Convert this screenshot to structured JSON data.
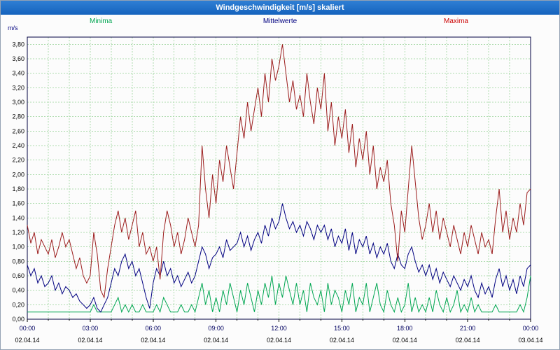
{
  "chart_data": {
    "type": "line",
    "title": "Windgeschwindigkeit [m/s] skaliert",
    "y_unit": "m/s",
    "ylim": [
      0,
      3.9
    ],
    "ytick_step": 0.2,
    "ytick_labels": [
      "0,00",
      "0,20",
      "0,40",
      "0,60",
      "0,80",
      "1,00",
      "1,20",
      "1,40",
      "1,60",
      "1,80",
      "2,00",
      "2,20",
      "2,40",
      "2,60",
      "2,80",
      "3,00",
      "3,20",
      "3,40",
      "3,60",
      "3,80"
    ],
    "x_hours_range": [
      0,
      24
    ],
    "sample_interval_minutes": 10,
    "grid": "dashed-green",
    "legend_position": "top",
    "xtick_labels": [
      "00:00",
      "03:00",
      "06:00",
      "09:00",
      "12:00",
      "15:00",
      "18:00",
      "21:00",
      "00:00"
    ],
    "xtick_dates": [
      "02.04.14",
      "02.04.14",
      "02.04.14",
      "02.04.14",
      "02.04.14",
      "02.04.14",
      "02.04.14",
      "02.04.14",
      "03.04.14"
    ],
    "series": [
      {
        "name": "Minima",
        "color": "#00a651",
        "label_color": "#00a651",
        "values": [
          0.1,
          0.1,
          0.1,
          0.1,
          0.1,
          0.1,
          0.1,
          0.1,
          0.1,
          0.1,
          0.1,
          0.1,
          0.1,
          0.1,
          0.1,
          0.1,
          0.1,
          0.1,
          0.1,
          0.2,
          0.1,
          0.1,
          0.1,
          0.1,
          0.1,
          0.2,
          0.3,
          0.1,
          0.2,
          0.1,
          0.2,
          0.1,
          0.1,
          0.2,
          0.1,
          0.1,
          0.1,
          0.2,
          0.1,
          0.3,
          0.2,
          0.1,
          0.1,
          0.1,
          0.2,
          0.1,
          0.1,
          0.2,
          0.1,
          0.3,
          0.5,
          0.2,
          0.4,
          0.1,
          0.3,
          0.1,
          0.4,
          0.2,
          0.5,
          0.3,
          0.1,
          0.4,
          0.2,
          0.5,
          0.3,
          0.1,
          0.4,
          0.2,
          0.5,
          0.3,
          0.6,
          0.2,
          0.5,
          0.3,
          0.6,
          0.4,
          0.2,
          0.5,
          0.2,
          0.4,
          0.1,
          0.5,
          0.3,
          0.2,
          0.4,
          0.1,
          0.5,
          0.2,
          0.4,
          0.3,
          0.1,
          0.4,
          0.2,
          0.5,
          0.1,
          0.3,
          0.2,
          0.5,
          0.1,
          0.3,
          0.5,
          0.2,
          0.1,
          0.4,
          0.2,
          0.1,
          0.3,
          0.1,
          0.2,
          0.5,
          0.1,
          0.3,
          0.1,
          0.2,
          0.1,
          0.3,
          0.1,
          0.4,
          0.2,
          0.1,
          0.3,
          0.1,
          0.2,
          0.4,
          0.1,
          0.2,
          0.1,
          0.3,
          0.1,
          0.2,
          0.1,
          0.1,
          0.1,
          0.1,
          0.2,
          0.1,
          0.1,
          0.1,
          0.1,
          0.1,
          0.1,
          0.2,
          0.1,
          0.3,
          0.6
        ]
      },
      {
        "name": "Mittelwerte",
        "color": "#000080",
        "label_color": "#000080",
        "values": [
          0.75,
          0.6,
          0.7,
          0.5,
          0.6,
          0.45,
          0.5,
          0.6,
          0.4,
          0.5,
          0.35,
          0.45,
          0.4,
          0.3,
          0.35,
          0.25,
          0.2,
          0.15,
          0.2,
          0.3,
          0.15,
          0.1,
          0.2,
          0.3,
          0.5,
          0.7,
          0.6,
          0.8,
          0.9,
          0.7,
          0.8,
          0.6,
          0.7,
          0.5,
          0.3,
          0.15,
          0.5,
          0.7,
          0.6,
          0.8,
          0.6,
          0.7,
          0.5,
          0.6,
          0.45,
          0.55,
          0.65,
          0.5,
          0.6,
          0.8,
          1.0,
          0.9,
          0.7,
          0.85,
          0.9,
          1.0,
          0.85,
          1.1,
          0.95,
          1.0,
          1.05,
          1.2,
          1.0,
          1.15,
          0.95,
          1.1,
          1.2,
          1.05,
          1.3,
          1.15,
          1.4,
          1.25,
          1.35,
          1.6,
          1.4,
          1.25,
          1.35,
          1.2,
          1.3,
          1.15,
          1.35,
          1.25,
          1.1,
          1.3,
          1.2,
          1.3,
          1.1,
          1.25,
          1.0,
          1.15,
          1.05,
          1.25,
          0.95,
          1.2,
          0.9,
          1.1,
          1.0,
          1.15,
          0.9,
          1.05,
          0.85,
          1.0,
          0.9,
          1.05,
          0.8,
          0.7,
          0.9,
          0.75,
          0.7,
          0.9,
          1.0,
          0.8,
          0.65,
          0.75,
          0.6,
          0.75,
          0.55,
          0.7,
          0.5,
          0.65,
          0.55,
          0.45,
          0.6,
          0.5,
          0.4,
          0.55,
          0.45,
          0.6,
          0.4,
          0.3,
          0.5,
          0.35,
          0.45,
          0.3,
          0.55,
          0.7,
          0.45,
          0.6,
          0.4,
          0.55,
          0.35,
          0.6,
          0.45,
          0.7,
          0.75
        ]
      },
      {
        "name": "Maxima",
        "color": "#9b1c1c",
        "label_color": "#cc0000",
        "values": [
          1.3,
          1.05,
          1.2,
          0.9,
          1.1,
          1.0,
          0.9,
          1.1,
          0.85,
          1.0,
          1.2,
          1.0,
          1.1,
          0.9,
          0.7,
          0.85,
          0.6,
          0.5,
          0.6,
          1.2,
          0.9,
          0.4,
          0.3,
          0.7,
          1.0,
          1.3,
          1.5,
          1.2,
          1.4,
          1.1,
          1.3,
          1.5,
          1.0,
          1.2,
          0.9,
          1.0,
          0.8,
          1.0,
          0.55,
          1.2,
          1.5,
          1.3,
          1.0,
          1.2,
          0.9,
          1.1,
          1.4,
          1.2,
          1.0,
          1.3,
          2.4,
          1.8,
          1.4,
          2.0,
          1.6,
          2.2,
          1.9,
          2.4,
          2.1,
          1.8,
          2.3,
          2.8,
          2.5,
          3.0,
          2.6,
          2.9,
          3.2,
          2.8,
          3.4,
          3.0,
          3.6,
          3.3,
          3.5,
          3.8,
          3.4,
          3.0,
          3.3,
          2.9,
          3.1,
          2.8,
          3.4,
          3.0,
          2.7,
          3.2,
          2.9,
          3.4,
          2.6,
          3.0,
          2.4,
          2.8,
          2.5,
          2.9,
          2.3,
          2.7,
          2.1,
          2.5,
          2.2,
          2.6,
          2.0,
          2.4,
          1.8,
          2.1,
          1.9,
          2.2,
          1.6,
          1.3,
          0.8,
          1.5,
          1.2,
          1.8,
          2.4,
          1.9,
          1.4,
          1.1,
          1.3,
          1.6,
          1.2,
          1.5,
          1.1,
          1.4,
          1.2,
          1.0,
          1.3,
          1.1,
          0.9,
          1.2,
          1.0,
          1.3,
          1.1,
          0.9,
          1.2,
          1.0,
          1.1,
          0.9,
          1.4,
          1.8,
          1.2,
          1.5,
          1.1,
          1.4,
          1.2,
          1.6,
          1.3,
          1.75,
          1.8
        ]
      }
    ]
  }
}
